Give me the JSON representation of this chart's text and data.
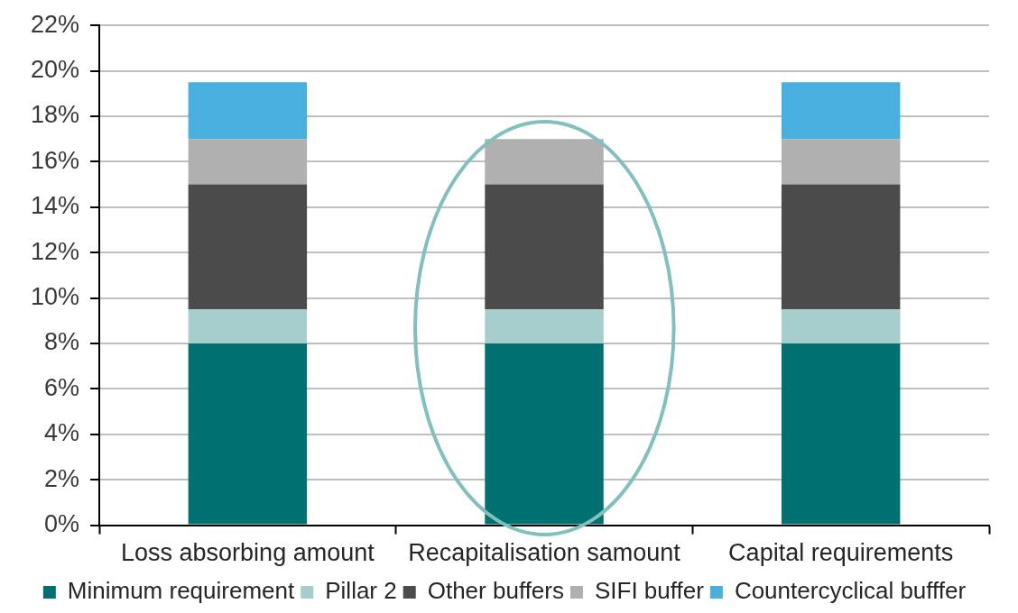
{
  "chart_data": {
    "type": "bar",
    "stacked": true,
    "categories": [
      "Loss absorbing amount",
      "Recapitalisation samount",
      "Capital requirements"
    ],
    "series": [
      {
        "name": "Minimum requirement",
        "color": "#007070",
        "values": [
          8,
          8,
          8
        ]
      },
      {
        "name": "Pillar 2",
        "color": "#a6cecd",
        "values": [
          1.5,
          1.5,
          1.5
        ]
      },
      {
        "name": "Other buffers",
        "color": "#4b4b4b",
        "values": [
          5.5,
          5.5,
          5.5
        ]
      },
      {
        "name": "SIFI buffer",
        "color": "#b0b0b0",
        "values": [
          2,
          2,
          2
        ]
      },
      {
        "name": "Countercyclical bufffer",
        "color": "#49afdf",
        "values": [
          2.5,
          null,
          2.5
        ]
      }
    ],
    "ylim": [
      0,
      22
    ],
    "yticks": [
      {
        "value": 0,
        "label": "0%"
      },
      {
        "value": 2,
        "label": "2%"
      },
      {
        "value": 4,
        "label": "4%"
      },
      {
        "value": 6,
        "label": "6%"
      },
      {
        "value": 8,
        "label": "8%"
      },
      {
        "value": 10,
        "label": "10%"
      },
      {
        "value": 12,
        "label": "12%"
      },
      {
        "value": 14,
        "label": "14%"
      },
      {
        "value": 16,
        "label": "16%"
      },
      {
        "value": 18,
        "label": "18%"
      },
      {
        "value": 20,
        "label": "20%"
      },
      {
        "value": 22,
        "label": "22%"
      }
    ],
    "grid": "y",
    "legend": "bottom"
  }
}
